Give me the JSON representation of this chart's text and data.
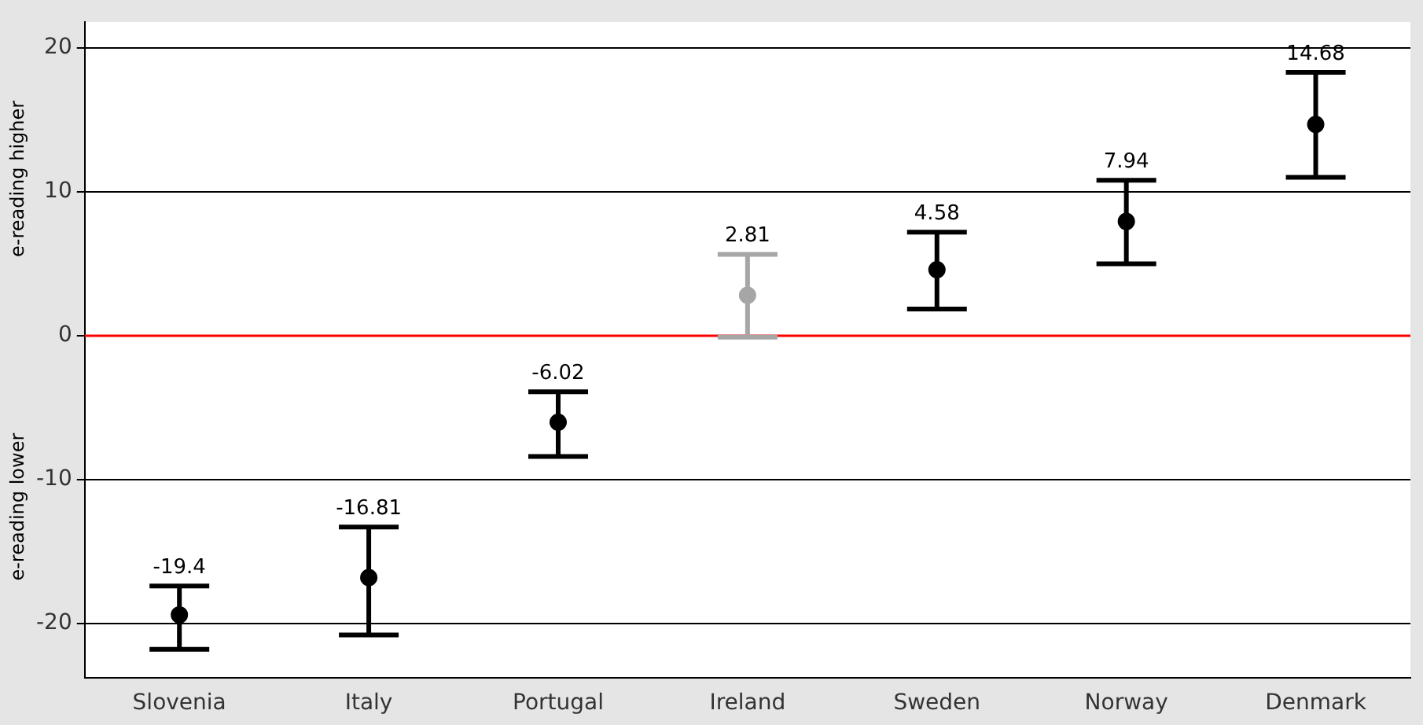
{
  "chart_data": {
    "type": "scatter",
    "categories": [
      "Slovenia",
      "Italy",
      "Portugal",
      "Ireland",
      "Sweden",
      "Norway",
      "Denmark"
    ],
    "values": [
      -19.4,
      -16.81,
      -6.02,
      2.81,
      4.58,
      7.94,
      14.68
    ],
    "errors": [
      [
        -21.8,
        -17.4
      ],
      [
        -20.8,
        -13.3
      ],
      [
        -8.4,
        -3.9
      ],
      [
        -0.1,
        5.65
      ],
      [
        1.85,
        7.2
      ],
      [
        5.0,
        10.8
      ],
      [
        11.0,
        18.3
      ]
    ],
    "colors": [
      "#000000",
      "#000000",
      "#000000",
      "#a6a6a6",
      "#000000",
      "#000000",
      "#000000"
    ],
    "data_labels": true,
    "ylim": [
      -23.8,
      21.8
    ],
    "yticks": [
      -20,
      -10,
      0,
      10,
      20
    ],
    "grid": "y",
    "marker": "circle",
    "legend": false,
    "ref_lines": [
      {
        "axis": "y",
        "value": 0,
        "color": "#ff0000"
      }
    ],
    "annotations": [
      "e-reading higher",
      "e-reading lower"
    ]
  }
}
